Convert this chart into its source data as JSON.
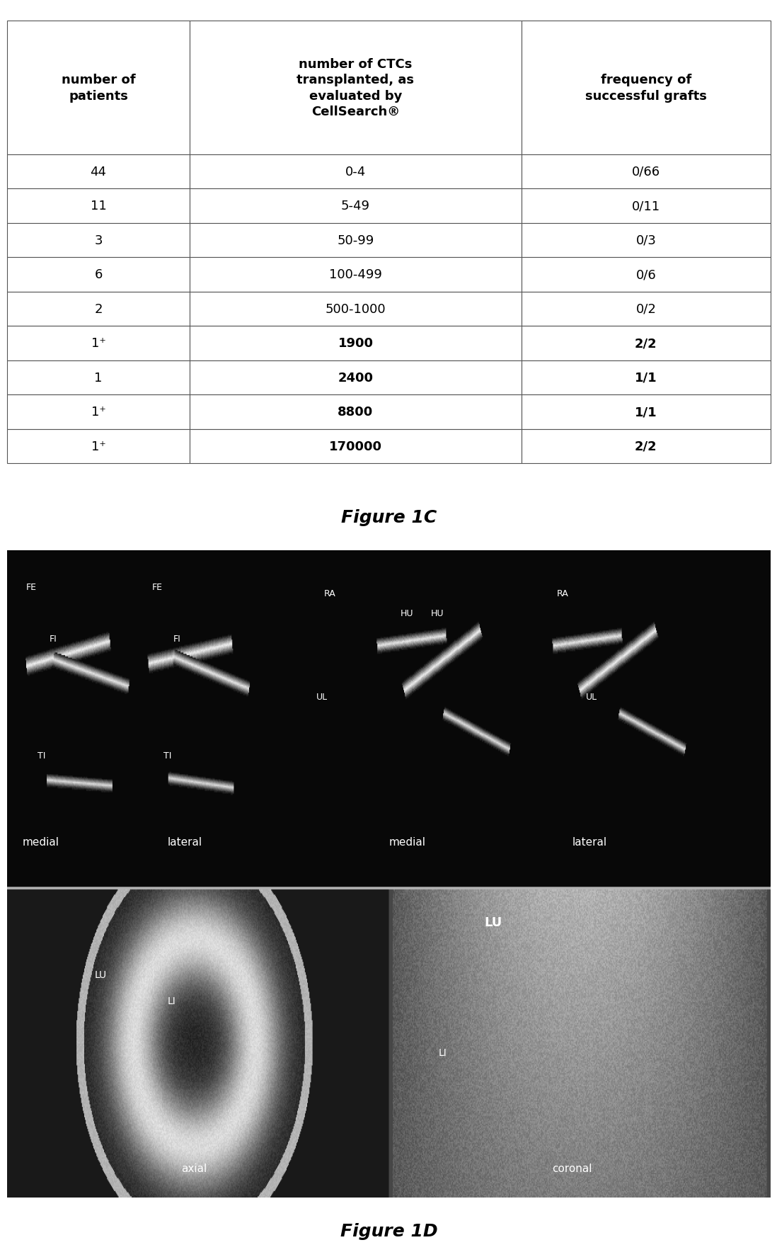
{
  "table_headers": [
    "number of\npatients",
    "number of CTCs\ntransplanted, as\nevaluated by\nCellSearch®",
    "frequency of\nsuccessful grafts"
  ],
  "table_rows": [
    [
      "44",
      "0-4",
      "0/66"
    ],
    [
      "11",
      "5-49",
      "0/11"
    ],
    [
      "3",
      "50-99",
      "0/3"
    ],
    [
      "6",
      "100-499",
      "0/6"
    ],
    [
      "2",
      "500-1000",
      "0/2"
    ],
    [
      "1⁺",
      "1900",
      "2/2"
    ],
    [
      "1",
      "2400",
      "1/1"
    ],
    [
      "1⁺",
      "8800",
      "1/1"
    ],
    [
      "1⁺",
      "170000",
      "2/2"
    ]
  ],
  "bold_rows": [
    5,
    6,
    7,
    8
  ],
  "figure1c_label": "Figure 1C",
  "figure1d_label": "Figure 1D",
  "bg_color": "#ffffff",
  "table_border_color": "#555555",
  "header_font_size": 13,
  "cell_font_size": 13,
  "figure_label_font_size": 18
}
